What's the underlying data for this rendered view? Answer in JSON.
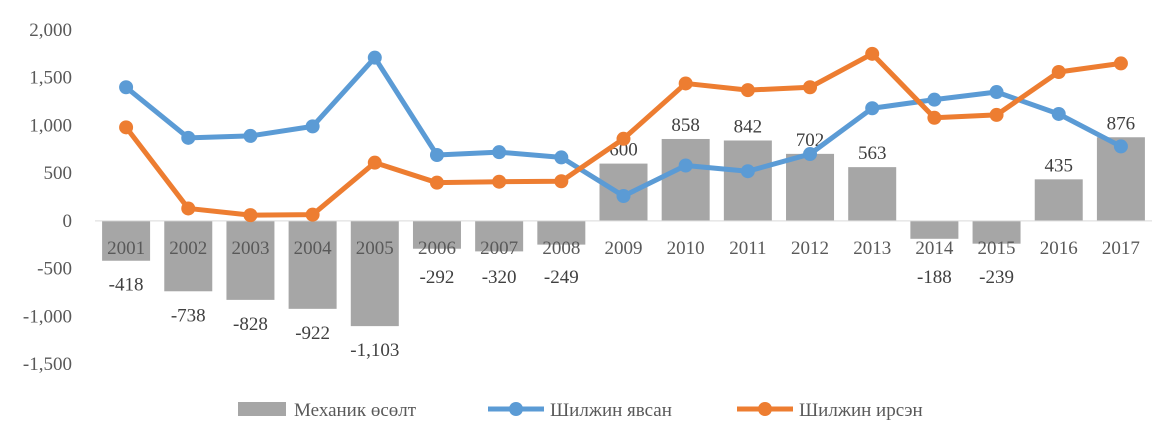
{
  "chart_data": {
    "type": "bar+line",
    "categories": [
      "2001",
      "2002",
      "2003",
      "2004",
      "2005",
      "2006",
      "2007",
      "2008",
      "2009",
      "2010",
      "2011",
      "2012",
      "2013",
      "2014",
      "2015",
      "2016",
      "2017"
    ],
    "series": [
      {
        "name": "Механик өсөлт",
        "kind": "bar",
        "color": "#a6a6a6",
        "values": [
          -418,
          -738,
          -828,
          -922,
          -1103,
          -292,
          -320,
          -249,
          600,
          858,
          842,
          702,
          563,
          -188,
          -239,
          435,
          876
        ],
        "labels": [
          "-418",
          "-738",
          "-828",
          "-922",
          "-1,103",
          "-292",
          "-320",
          "-249",
          "600",
          "858",
          "842",
          "702",
          "563",
          "-188",
          "-239",
          "435",
          "876"
        ]
      },
      {
        "name": "Шилжин явсан",
        "kind": "line",
        "color": "#5b9bd5",
        "values": [
          1400,
          870,
          890,
          990,
          1710,
          690,
          720,
          665,
          260,
          580,
          520,
          700,
          1180,
          1270,
          1350,
          1120,
          780
        ]
      },
      {
        "name": "Шилжин ирсэн",
        "kind": "line",
        "color": "#ed7d31",
        "values": [
          980,
          130,
          60,
          65,
          610,
          400,
          410,
          415,
          860,
          1440,
          1370,
          1400,
          1750,
          1080,
          1110,
          1560,
          1650
        ]
      }
    ],
    "yticks": [
      "2,000",
      "1,500",
      "1,000",
      "500",
      "0",
      "-500",
      "-1,000",
      "-1,500"
    ],
    "ytick_values": [
      2000,
      1500,
      1000,
      500,
      0,
      -500,
      -1000,
      -1500
    ],
    "ylim": [
      -1500,
      2000
    ],
    "legend_position": "bottom",
    "grid": false
  }
}
